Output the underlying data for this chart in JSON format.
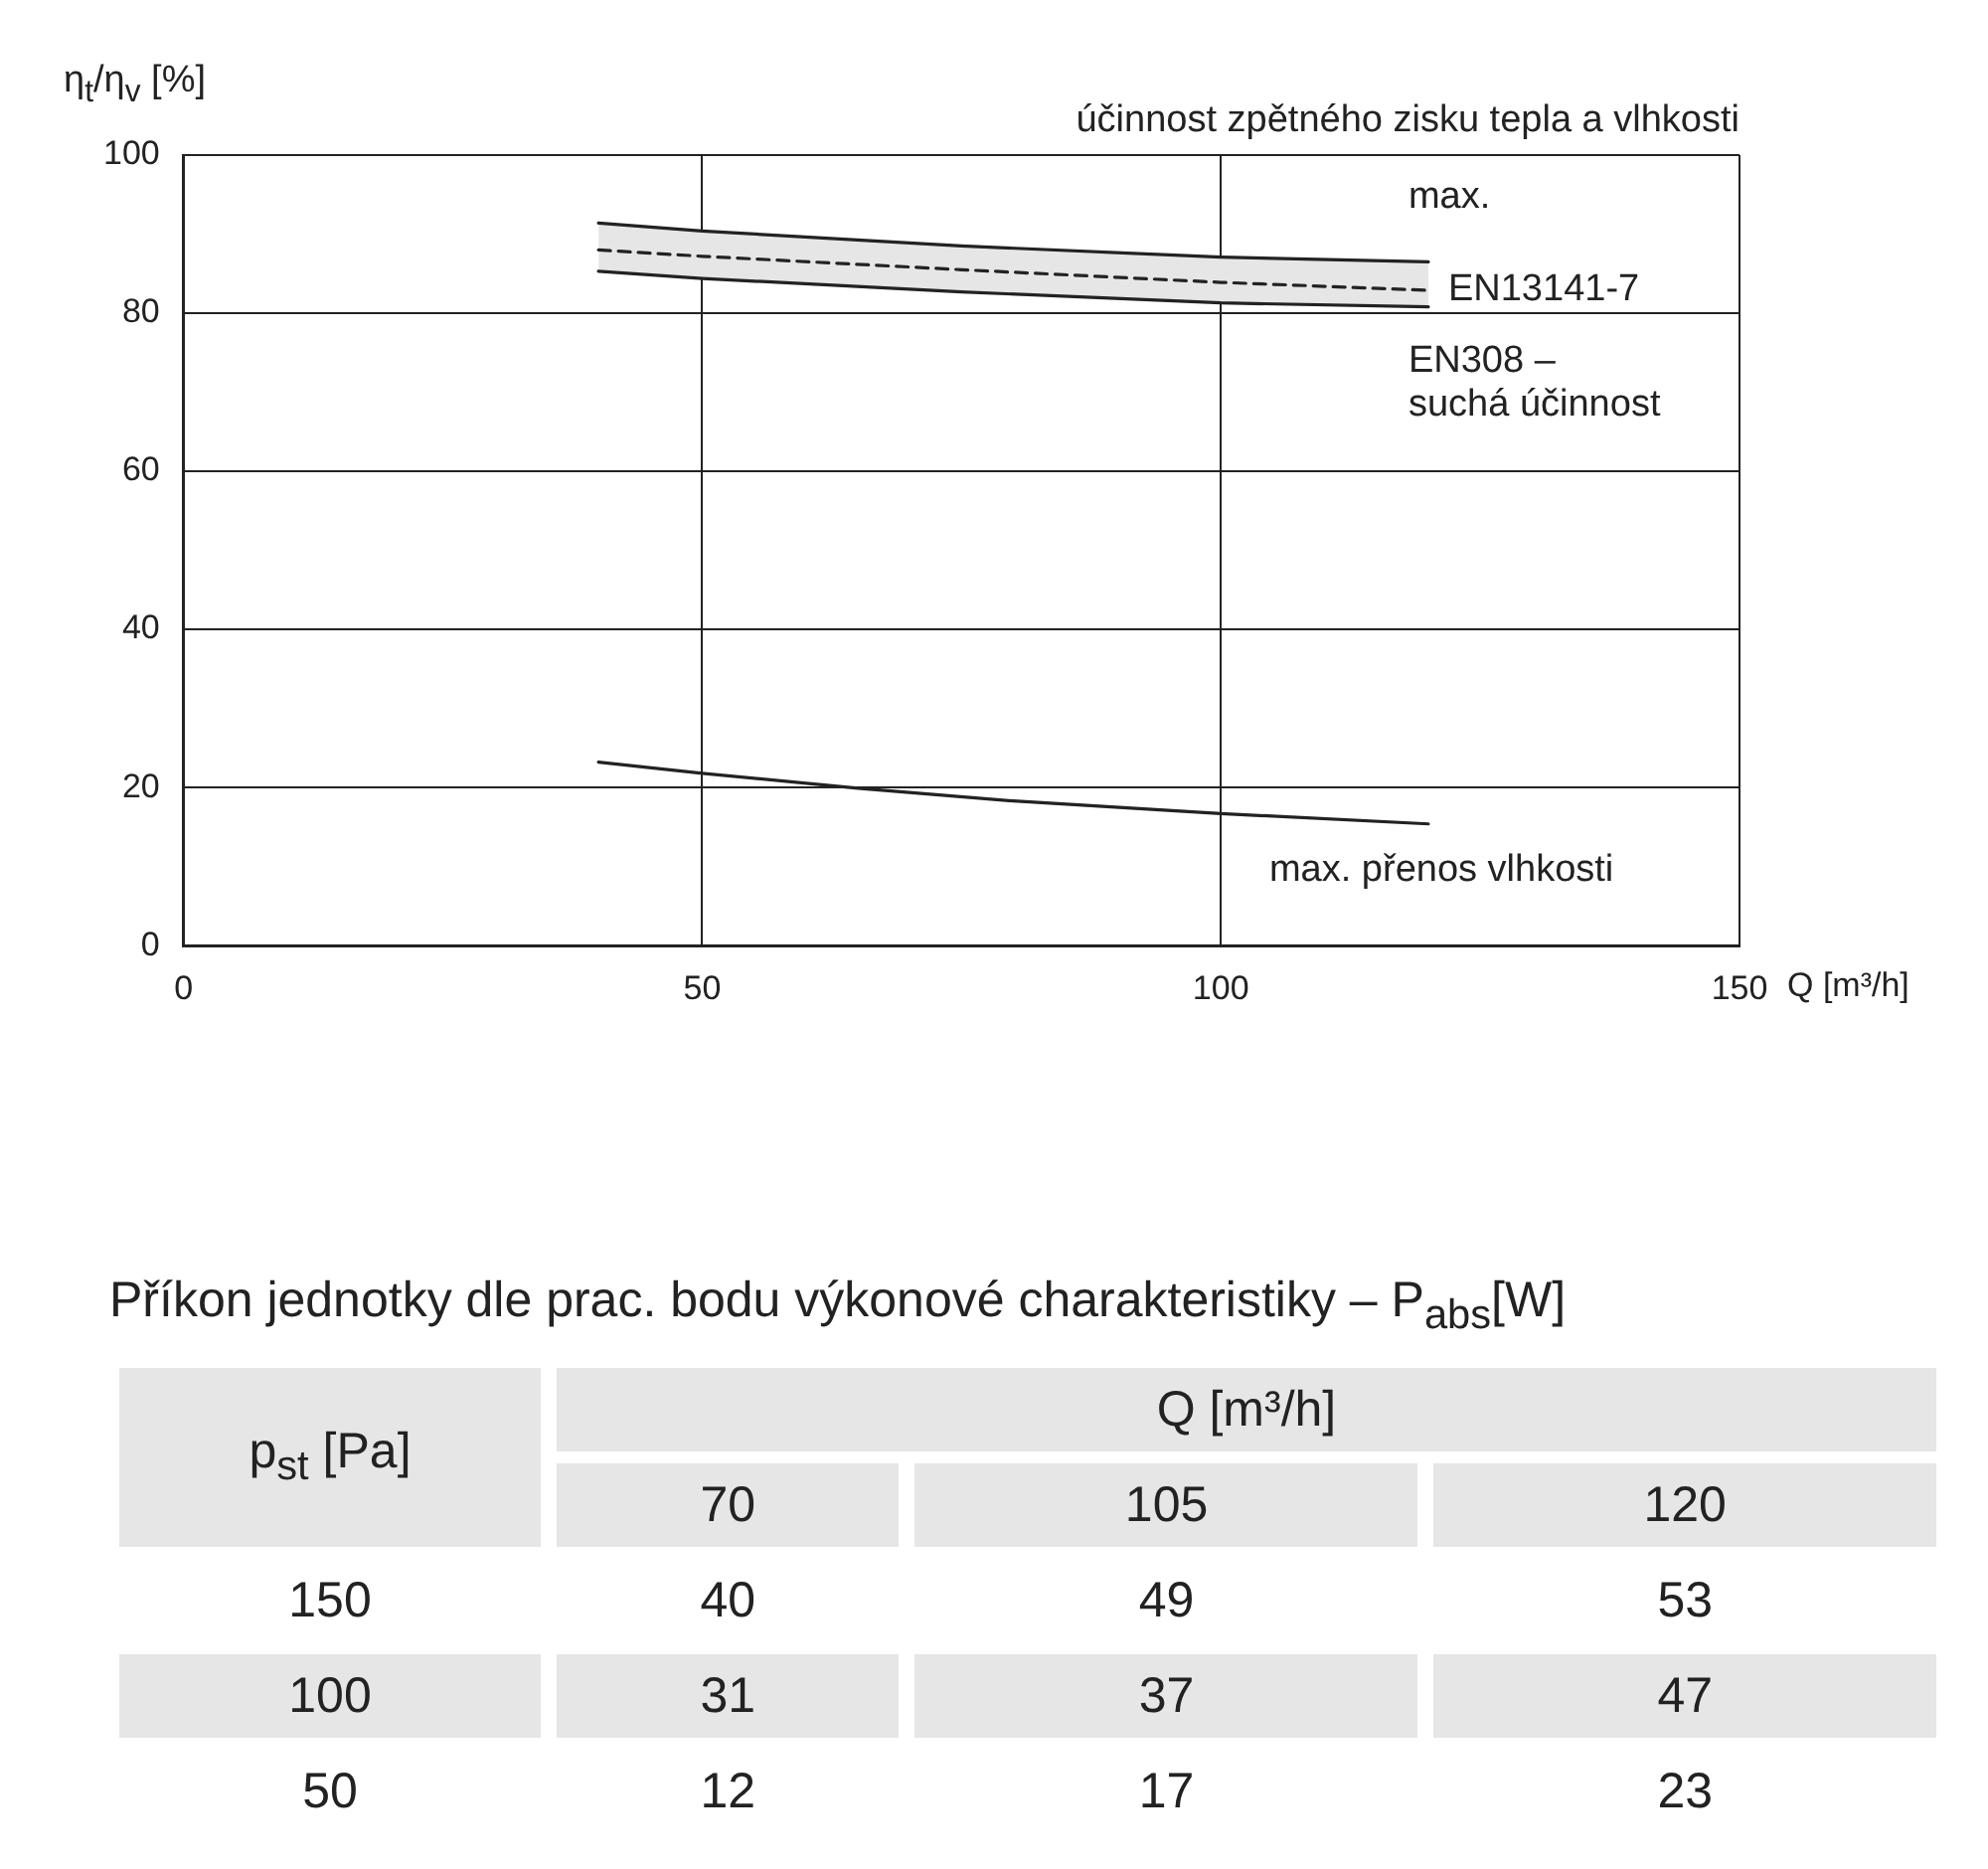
{
  "chart_data": [
    {
      "type": "line",
      "title": "účinnost zpětného zisku tepla a vlhkosti",
      "xlabel": "Q [m³/h]",
      "ylabel": "η$_{t}$/η$_{v}$ [%]",
      "xlim": [
        0,
        150
      ],
      "xticks": [
        0,
        50,
        100,
        150
      ],
      "ylim": [
        0,
        100
      ],
      "yticks": [
        0,
        20,
        40,
        60,
        80,
        100
      ],
      "grid": true,
      "legend": false,
      "marker": "none",
      "series": [
        {
          "name": "max.",
          "color": "#222222",
          "x": [
            40,
            50,
            75,
            100,
            120
          ],
          "values": [
            91.4,
            90.4,
            88.5,
            87.1,
            86.5
          ]
        },
        {
          "name": "EN13141-7",
          "color": "#222222",
          "line_style": "dashed",
          "x": [
            40,
            50,
            75,
            100,
            120
          ],
          "values": [
            88,
            87.2,
            85.5,
            83.9,
            82.9
          ],
          "lower": [
            85.3,
            84.4,
            82.7,
            81.3,
            80.8
          ],
          "upper": [
            91.4,
            90.4,
            88.5,
            87.1,
            86.5
          ]
        },
        {
          "name": "EN308 – suchá účinnost",
          "color": "#222222",
          "x": [
            40,
            50,
            75,
            100,
            120
          ],
          "values": [
            85.3,
            84.4,
            82.7,
            81.3,
            80.8
          ]
        },
        {
          "name": "max. přenos vlhkosti",
          "color": "#222222",
          "x": [
            40,
            50,
            65,
            80,
            100,
            120
          ],
          "values": [
            23.2,
            21.8,
            19.9,
            18.3,
            16.7,
            15.4
          ]
        }
      ]
    },
    {
      "type": "heatmap",
      "data_labels": true,
      "title": "Příkon jednotky dle prac. bodu výkonové charakteristiky – P$_{abs}$[W]",
      "xlabel": "Q [m³/h]",
      "ylabel": "p$_{st}$ [Pa]",
      "categories": [
        "70",
        "105",
        "120"
      ],
      "y_categories": [
        "150",
        "100",
        "50"
      ],
      "cells": [
        [
          40,
          49,
          53
        ],
        [
          31,
          37,
          47
        ],
        [
          12,
          17,
          23
        ]
      ]
    }
  ]
}
